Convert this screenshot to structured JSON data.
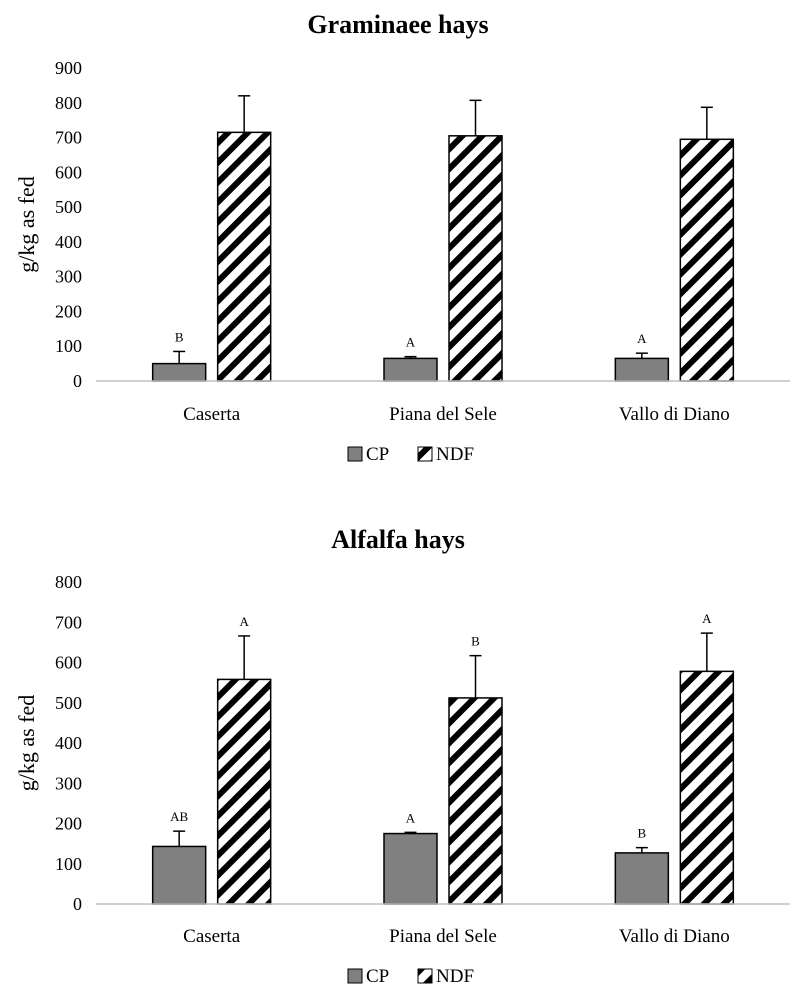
{
  "chart_data": [
    {
      "type": "bar",
      "title": "Graminaee hays",
      "ylabel": "g/kg as fed",
      "xlabel": "",
      "ylim": [
        0,
        900
      ],
      "yticks": [
        0,
        100,
        200,
        300,
        400,
        500,
        600,
        700,
        800,
        900
      ],
      "categories": [
        "Caserta",
        "Piana del Sele",
        "Vallo di Diano"
      ],
      "series": [
        {
          "name": "CP",
          "values": [
            50,
            65,
            65
          ],
          "errors": [
            35,
            5,
            15
          ],
          "letters": [
            "B",
            "A",
            "A"
          ],
          "color": "#808080",
          "pattern": "solid"
        },
        {
          "name": "NDF",
          "values": [
            715,
            705,
            695
          ],
          "errors": [
            105,
            102,
            92
          ],
          "letters": [
            "",
            "",
            ""
          ],
          "color": "#000000",
          "pattern": "diagonal-hatch"
        }
      ],
      "legend": {
        "position": "bottom"
      },
      "grid": false
    },
    {
      "type": "bar",
      "title": "Alfalfa hays",
      "ylabel": "g/kg as fed",
      "xlabel": "",
      "ylim": [
        0,
        800
      ],
      "yticks": [
        0,
        100,
        200,
        300,
        400,
        500,
        600,
        700,
        800
      ],
      "categories": [
        "Caserta",
        "Piana del Sele",
        "Vallo di Diano"
      ],
      "series": [
        {
          "name": "CP",
          "values": [
            143,
            175,
            127
          ],
          "errors": [
            38,
            3,
            13
          ],
          "letters": [
            "AB",
            "A",
            "B"
          ],
          "color": "#808080",
          "pattern": "solid"
        },
        {
          "name": "NDF",
          "values": [
            558,
            512,
            578
          ],
          "errors": [
            108,
            105,
            95
          ],
          "letters": [
            "A",
            "B",
            "A"
          ],
          "color": "#000000",
          "pattern": "diagonal-hatch"
        }
      ],
      "legend": {
        "position": "bottom"
      },
      "grid": false
    }
  ]
}
